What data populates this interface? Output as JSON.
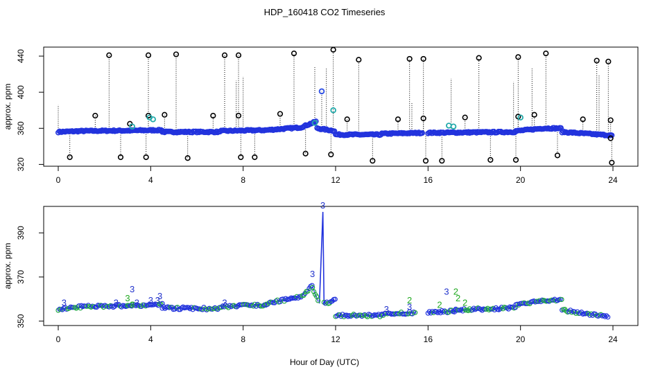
{
  "chart_data": [
    {
      "type": "scatter",
      "title": "HDP_160418  CO2 Timeseries",
      "xlabel": "",
      "ylabel": "approx. ppm",
      "xlim": [
        0,
        24
      ],
      "ylim": [
        318,
        450
      ],
      "xticks": [
        "0",
        "4",
        "8",
        "12",
        "16",
        "20",
        "24"
      ],
      "yticks": [
        "320",
        "360",
        "400",
        "440"
      ],
      "baseline_segments": [
        {
          "x0": 0.0,
          "x1": 1.0,
          "y0": 356.0,
          "y1": 357.0
        },
        {
          "x0": 1.0,
          "x1": 3.0,
          "y0": 357.0,
          "y1": 357.5
        },
        {
          "x0": 3.0,
          "x1": 4.5,
          "y0": 357.5,
          "y1": 358.0
        },
        {
          "x0": 4.5,
          "x1": 7.0,
          "y0": 356.0,
          "y1": 356.0
        },
        {
          "x0": 7.0,
          "x1": 9.0,
          "y0": 357.0,
          "y1": 358.0
        },
        {
          "x0": 9.0,
          "x1": 10.5,
          "y0": 358.0,
          "y1": 361.0
        },
        {
          "x0": 10.5,
          "x1": 11.2,
          "y0": 361.0,
          "y1": 368.0
        },
        {
          "x0": 11.2,
          "x1": 12.0,
          "y0": 360.0,
          "y1": 357.0
        },
        {
          "x0": 12.0,
          "x1": 14.0,
          "y0": 353.0,
          "y1": 353.0
        },
        {
          "x0": 14.0,
          "x1": 15.8,
          "y0": 354.0,
          "y1": 355.0
        },
        {
          "x0": 16.0,
          "x1": 19.8,
          "y0": 355.0,
          "y1": 356.0
        },
        {
          "x0": 19.8,
          "x1": 21.0,
          "y0": 357.0,
          "y1": 360.0
        },
        {
          "x0": 21.0,
          "x1": 21.8,
          "y0": 360.0,
          "y1": 360.0
        },
        {
          "x0": 21.8,
          "x1": 24.0,
          "y0": 356.0,
          "y1": 352.0
        }
      ],
      "spikes": [
        {
          "x": 0.5,
          "y": 328
        },
        {
          "x": 1.6,
          "y": 374
        },
        {
          "x": 2.2,
          "y": 441
        },
        {
          "x": 2.7,
          "y": 328
        },
        {
          "x": 3.1,
          "y": 365
        },
        {
          "x": 3.8,
          "y": 328
        },
        {
          "x": 3.9,
          "y": 374
        },
        {
          "x": 3.9,
          "y": 441
        },
        {
          "x": 4.6,
          "y": 375
        },
        {
          "x": 5.1,
          "y": 442
        },
        {
          "x": 5.6,
          "y": 327
        },
        {
          "x": 6.7,
          "y": 374
        },
        {
          "x": 7.2,
          "y": 441
        },
        {
          "x": 7.8,
          "y": 441
        },
        {
          "x": 7.8,
          "y": 374
        },
        {
          "x": 7.9,
          "y": 328
        },
        {
          "x": 8.5,
          "y": 328
        },
        {
          "x": 9.6,
          "y": 376
        },
        {
          "x": 10.2,
          "y": 443
        },
        {
          "x": 10.7,
          "y": 332
        },
        {
          "x": 11.4,
          "y": 401
        },
        {
          "x": 11.8,
          "y": 331
        },
        {
          "x": 11.9,
          "y": 447
        },
        {
          "x": 12.5,
          "y": 370
        },
        {
          "x": 13.0,
          "y": 436
        },
        {
          "x": 13.6,
          "y": 324
        },
        {
          "x": 14.7,
          "y": 370
        },
        {
          "x": 15.2,
          "y": 437
        },
        {
          "x": 15.8,
          "y": 437
        },
        {
          "x": 15.8,
          "y": 371
        },
        {
          "x": 15.9,
          "y": 324
        },
        {
          "x": 16.6,
          "y": 324
        },
        {
          "x": 17.6,
          "y": 372
        },
        {
          "x": 18.2,
          "y": 438
        },
        {
          "x": 18.7,
          "y": 325
        },
        {
          "x": 19.8,
          "y": 325
        },
        {
          "x": 19.9,
          "y": 373
        },
        {
          "x": 19.9,
          "y": 439
        },
        {
          "x": 20.6,
          "y": 375
        },
        {
          "x": 21.1,
          "y": 443
        },
        {
          "x": 21.6,
          "y": 330
        },
        {
          "x": 22.7,
          "y": 370
        },
        {
          "x": 23.3,
          "y": 435
        },
        {
          "x": 23.8,
          "y": 434
        },
        {
          "x": 23.9,
          "y": 369
        },
        {
          "x": 23.9,
          "y": 349
        },
        {
          "x": 23.95,
          "y": 322
        }
      ],
      "colored_points": [
        {
          "x": 3.2,
          "y": 362,
          "color": "#22aaaa"
        },
        {
          "x": 3.95,
          "y": 372,
          "color": "#22aaaa"
        },
        {
          "x": 4.1,
          "y": 370,
          "color": "#22aaaa"
        },
        {
          "x": 11.1,
          "y": 366,
          "color": "#22aaaa"
        },
        {
          "x": 11.4,
          "y": 401,
          "color": "#3355ee"
        },
        {
          "x": 11.9,
          "y": 380,
          "color": "#22aaaa"
        },
        {
          "x": 16.9,
          "y": 363,
          "color": "#22aaaa"
        },
        {
          "x": 17.1,
          "y": 362,
          "color": "#22aaaa"
        },
        {
          "x": 20.0,
          "y": 372,
          "color": "#22aaaa"
        }
      ]
    },
    {
      "type": "line",
      "title": "",
      "xlabel": "Hour of Day (UTC)",
      "ylabel": "approx. ppm",
      "xlim": [
        0,
        24
      ],
      "ylim": [
        348,
        402
      ],
      "xticks": [
        "0",
        "4",
        "8",
        "12",
        "16",
        "20",
        "24"
      ],
      "yticks": [
        "350",
        "370",
        "390"
      ],
      "segments": [
        {
          "x0": 0.0,
          "x1": 1.0,
          "y0": 355.5,
          "y1": 356.5
        },
        {
          "x0": 1.0,
          "x1": 3.0,
          "y0": 356.5,
          "y1": 357.0
        },
        {
          "x0": 3.0,
          "x1": 4.5,
          "y0": 357.0,
          "y1": 357.5
        },
        {
          "x0": 4.5,
          "x1": 7.0,
          "y0": 356.0,
          "y1": 355.5
        },
        {
          "x0": 7.0,
          "x1": 9.0,
          "y0": 356.5,
          "y1": 357.5
        },
        {
          "x0": 9.0,
          "x1": 10.5,
          "y0": 358.0,
          "y1": 361.0
        },
        {
          "x0": 10.5,
          "x1": 11.0,
          "y0": 361.0,
          "y1": 366.0
        },
        {
          "x0": 11.0,
          "x1": 11.3,
          "y0": 365.0,
          "y1": 358.0
        },
        {
          "x0": 11.5,
          "x1": 12.0,
          "y0": 358.0,
          "y1": 359.5
        },
        {
          "x0": 12.0,
          "x1": 14.0,
          "y0": 352.5,
          "y1": 352.5
        },
        {
          "x0": 14.0,
          "x1": 15.5,
          "y0": 353.0,
          "y1": 354.0
        },
        {
          "x0": 16.0,
          "x1": 17.2,
          "y0": 354.0,
          "y1": 354.5
        },
        {
          "x0": 17.2,
          "x1": 19.8,
          "y0": 355.0,
          "y1": 356.0
        },
        {
          "x0": 19.8,
          "x1": 21.0,
          "y0": 357.0,
          "y1": 359.5
        },
        {
          "x0": 21.0,
          "x1": 21.8,
          "y0": 359.5,
          "y1": 359.5
        },
        {
          "x0": 21.8,
          "x1": 23.8,
          "y0": 355.0,
          "y1": 352.0
        }
      ],
      "peak": {
        "x": 11.45,
        "y": 399.5
      },
      "labels": [
        {
          "x": 0.25,
          "y": 357,
          "text": "3",
          "color": "#2233cc"
        },
        {
          "x": 2.5,
          "y": 357,
          "text": "3",
          "color": "#2233cc"
        },
        {
          "x": 3.0,
          "y": 359,
          "text": "3",
          "color": "#22aa22"
        },
        {
          "x": 3.2,
          "y": 363,
          "text": "3",
          "color": "#2233cc"
        },
        {
          "x": 3.2,
          "y": 356,
          "text": "3",
          "color": "#22aa22"
        },
        {
          "x": 3.4,
          "y": 357,
          "text": "3",
          "color": "#2233cc"
        },
        {
          "x": 4.0,
          "y": 358,
          "text": "3",
          "color": "#2233cc"
        },
        {
          "x": 4.3,
          "y": 358,
          "text": "3",
          "color": "#2233cc"
        },
        {
          "x": 4.4,
          "y": 360,
          "text": "3",
          "color": "#2233cc"
        },
        {
          "x": 7.2,
          "y": 357,
          "text": "3",
          "color": "#2233cc"
        },
        {
          "x": 11.0,
          "y": 370,
          "text": "3",
          "color": "#2233cc"
        },
        {
          "x": 11.45,
          "y": 401,
          "text": "3",
          "color": "#2233cc"
        },
        {
          "x": 14.2,
          "y": 354,
          "text": "3",
          "color": "#2233cc"
        },
        {
          "x": 15.2,
          "y": 358,
          "text": "2",
          "color": "#22aa22"
        },
        {
          "x": 15.2,
          "y": 355,
          "text": "3",
          "color": "#2233cc"
        },
        {
          "x": 16.5,
          "y": 356,
          "text": "2",
          "color": "#22aa22"
        },
        {
          "x": 16.8,
          "y": 362,
          "text": "3",
          "color": "#2233cc"
        },
        {
          "x": 17.2,
          "y": 362,
          "text": "2",
          "color": "#22aa22"
        },
        {
          "x": 17.3,
          "y": 359,
          "text": "2",
          "color": "#22aa22"
        },
        {
          "x": 17.6,
          "y": 357,
          "text": "2",
          "color": "#22aa22"
        }
      ]
    }
  ]
}
